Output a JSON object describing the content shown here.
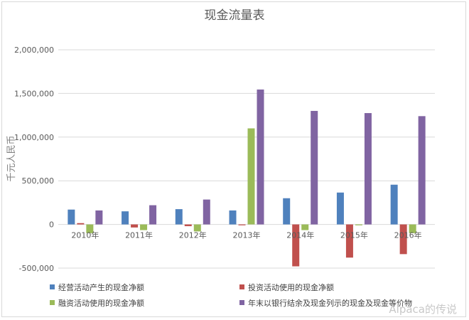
{
  "chart_data": {
    "type": "bar",
    "title": "现金流量表",
    "ylabel": "千元人民币",
    "xlabel": "",
    "ylim": [
      -500000,
      2000000
    ],
    "yticks": [
      "-500,000",
      "0",
      "500,000",
      "1,000,000",
      "1,500,000",
      "2,000,000"
    ],
    "ytick_values": [
      -500000,
      0,
      500000,
      1000000,
      1500000,
      2000000
    ],
    "categories": [
      "2010年",
      "2011年",
      "2012年",
      "2013年",
      "2014年",
      "2015年",
      "2016年"
    ],
    "grid": true,
    "legend_position": "bottom",
    "series": [
      {
        "name": "经营活动产生的现金净额",
        "color": "#4f81bd",
        "values": [
          170000,
          150000,
          175000,
          160000,
          300000,
          365000,
          455000
        ]
      },
      {
        "name": "投资活动使用的现金净额",
        "color": "#c0504d",
        "values": [
          15000,
          -35000,
          -20000,
          -10000,
          -480000,
          -380000,
          -340000
        ]
      },
      {
        "name": "融资活动使用的现金净额",
        "color": "#9bbb59",
        "values": [
          -100000,
          -65000,
          -80000,
          1100000,
          -65000,
          -10000,
          -100000
        ]
      },
      {
        "name": "年末以银行结余及现金列示的现金及现金等价物",
        "color": "#8064a2",
        "values": [
          160000,
          220000,
          285000,
          1545000,
          1300000,
          1275000,
          1240000
        ]
      }
    ]
  },
  "watermark": "Alpaca的传说"
}
